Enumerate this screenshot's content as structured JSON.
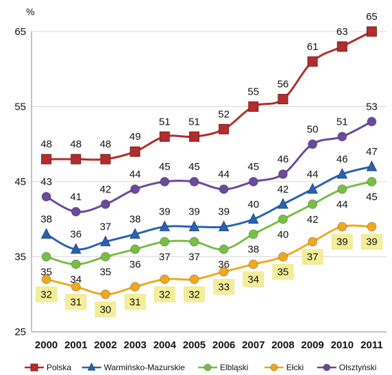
{
  "chart_data": {
    "type": "line",
    "unit": "%",
    "categories": [
      "2000",
      "2001",
      "2002",
      "2003",
      "2004",
      "2005",
      "2006",
      "2007",
      "2008",
      "2009",
      "2010",
      "2011"
    ],
    "ylim": [
      25,
      65
    ],
    "yticks": [
      25,
      35,
      45,
      55,
      65
    ],
    "grid": true,
    "legend_position": "bottom",
    "series": [
      {
        "name": "Polska",
        "color": "#b22d2d",
        "marker": "square",
        "label_position": "above",
        "label_box": "none",
        "values": [
          48,
          48,
          48,
          49,
          51,
          51,
          52,
          55,
          56,
          61,
          63,
          65
        ]
      },
      {
        "name": "Warmińsko-Mazurskie",
        "color": "#2a62b0",
        "marker": "triangle",
        "label_position": "above",
        "label_box": "none",
        "values": [
          38,
          36,
          37,
          38,
          39,
          39,
          39,
          40,
          42,
          44,
          46,
          47
        ]
      },
      {
        "name": "Elbląski",
        "color": "#79be44",
        "marker": "circle",
        "label_position": "below",
        "label_box": "none",
        "values": [
          35,
          34,
          35,
          36,
          37,
          37,
          36,
          38,
          40,
          42,
          44,
          45
        ]
      },
      {
        "name": "Ełcki",
        "color": "#f0a81e",
        "marker": "circle",
        "label_position": "below",
        "label_box": "yellow",
        "values": [
          32,
          31,
          30,
          31,
          32,
          32,
          33,
          34,
          35,
          37,
          39,
          39
        ]
      },
      {
        "name": "Olsztyński",
        "color": "#6a4a9a",
        "marker": "circle",
        "label_position": "above",
        "label_box": "none",
        "values": [
          43,
          41,
          42,
          44,
          45,
          45,
          44,
          45,
          46,
          50,
          51,
          53
        ]
      }
    ]
  }
}
